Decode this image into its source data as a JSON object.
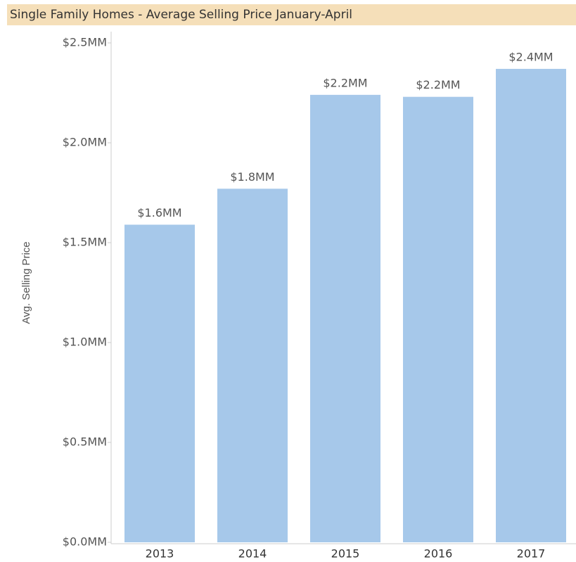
{
  "chart_data": {
    "type": "bar",
    "title": "Single Family Homes - Average Selling Price January-April",
    "y_axis_label": "Avg. Selling Price",
    "categories": [
      "2013",
      "2014",
      "2015",
      "2016",
      "2017"
    ],
    "values": [
      1590000,
      1770000,
      2240000,
      2230000,
      2370000
    ],
    "value_labels": [
      "$1.6MM",
      "$1.8MM",
      "$2.2MM",
      "$2.2MM",
      "$2.4MM"
    ],
    "color": "#a6c8ea",
    "ylim": [
      0,
      2500000
    ],
    "yticks": [
      {
        "value": 0,
        "label": "$0.0MM"
      },
      {
        "value": 500000,
        "label": "$0.5MM"
      },
      {
        "value": 1000000,
        "label": "$1.0MM"
      },
      {
        "value": 1500000,
        "label": "$1.5MM"
      },
      {
        "value": 2000000,
        "label": "$2.0MM"
      },
      {
        "value": 2500000,
        "label": "$2.5MM"
      }
    ],
    "grid": false
  }
}
